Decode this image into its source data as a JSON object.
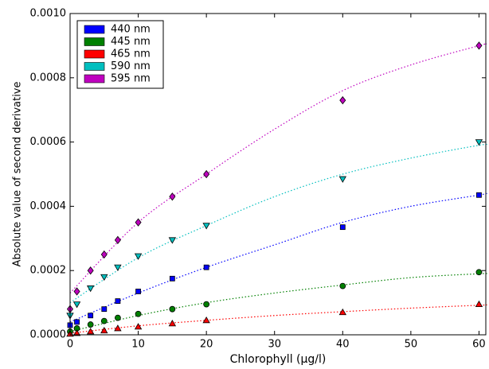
{
  "chart_data": {
    "type": "scatter",
    "x_label": "Chlorophyll  (μg/l)",
    "y_label": "Absolute value of second derivative",
    "xlim": [
      0,
      61
    ],
    "ylim": [
      0,
      0.001
    ],
    "xticks": [
      0,
      10,
      20,
      30,
      40,
      50,
      60
    ],
    "yticks": [
      {
        "value": 0,
        "label": "0.0000"
      },
      {
        "value": 0.0002,
        "label": "0.0002"
      },
      {
        "value": 0.0004,
        "label": "0.0004"
      },
      {
        "value": 0.0006,
        "label": "0.0006"
      },
      {
        "value": 0.0008,
        "label": "0.0008"
      },
      {
        "value": 0.001,
        "label": "0.0010"
      }
    ],
    "legend": "upper left",
    "x": [
      0,
      1,
      3,
      5,
      7,
      10,
      15,
      20,
      40,
      60
    ],
    "fit_x": [
      0,
      10,
      20,
      30,
      40,
      50,
      60,
      61
    ],
    "series": [
      {
        "name": "440 nm",
        "color": "#0000ff",
        "marker": "square",
        "values": [
          3e-05,
          4e-05,
          6e-05,
          8e-05,
          0.000105,
          0.000135,
          0.000175,
          0.00021,
          0.000335,
          0.000435
        ],
        "fit": [
          4e-05,
          0.00013,
          0.00021,
          0.00028,
          0.00035,
          0.0004,
          0.000435,
          0.00044
        ]
      },
      {
        "name": "445 nm",
        "color": "#008000",
        "marker": "circle",
        "values": [
          1e-05,
          2e-05,
          3.2e-05,
          4.3e-05,
          5.3e-05,
          6.5e-05,
          8e-05,
          9.5e-05,
          0.000152,
          0.000195
        ],
        "fit": [
          1e-05,
          6e-05,
          0.0001,
          0.00013,
          0.000155,
          0.000178,
          0.00019,
          0.00019
        ]
      },
      {
        "name": "465 nm",
        "color": "#ff0000",
        "marker": "triangle-up",
        "values": [
          3e-06,
          5e-06,
          1e-05,
          1.3e-05,
          2e-05,
          2.5e-05,
          3.5e-05,
          4.5e-05,
          7e-05,
          9.5e-05
        ],
        "fit": [
          5e-06,
          2.8e-05,
          4.5e-05,
          6e-05,
          7.2e-05,
          8.3e-05,
          9.2e-05,
          9.3e-05
        ]
      },
      {
        "name": "590 nm",
        "color": "#00bfbf",
        "marker": "triangle-down",
        "values": [
          6e-05,
          9.5e-05,
          0.000145,
          0.00018,
          0.00021,
          0.000245,
          0.000295,
          0.00034,
          0.000485,
          0.0006
        ],
        "fit": [
          0.0001,
          0.00024,
          0.00034,
          0.00043,
          0.0005,
          0.00055,
          0.00059,
          0.00059
        ]
      },
      {
        "name": "595 nm",
        "color": "#bf00bf",
        "marker": "diamond",
        "values": [
          8e-05,
          0.000135,
          0.0002,
          0.00025,
          0.000295,
          0.00035,
          0.00043,
          0.0005,
          0.00073,
          0.0009
        ],
        "fit": [
          0.00013,
          0.00035,
          0.0005,
          0.00064,
          0.00076,
          0.00084,
          0.0009,
          0.000905
        ]
      }
    ]
  }
}
